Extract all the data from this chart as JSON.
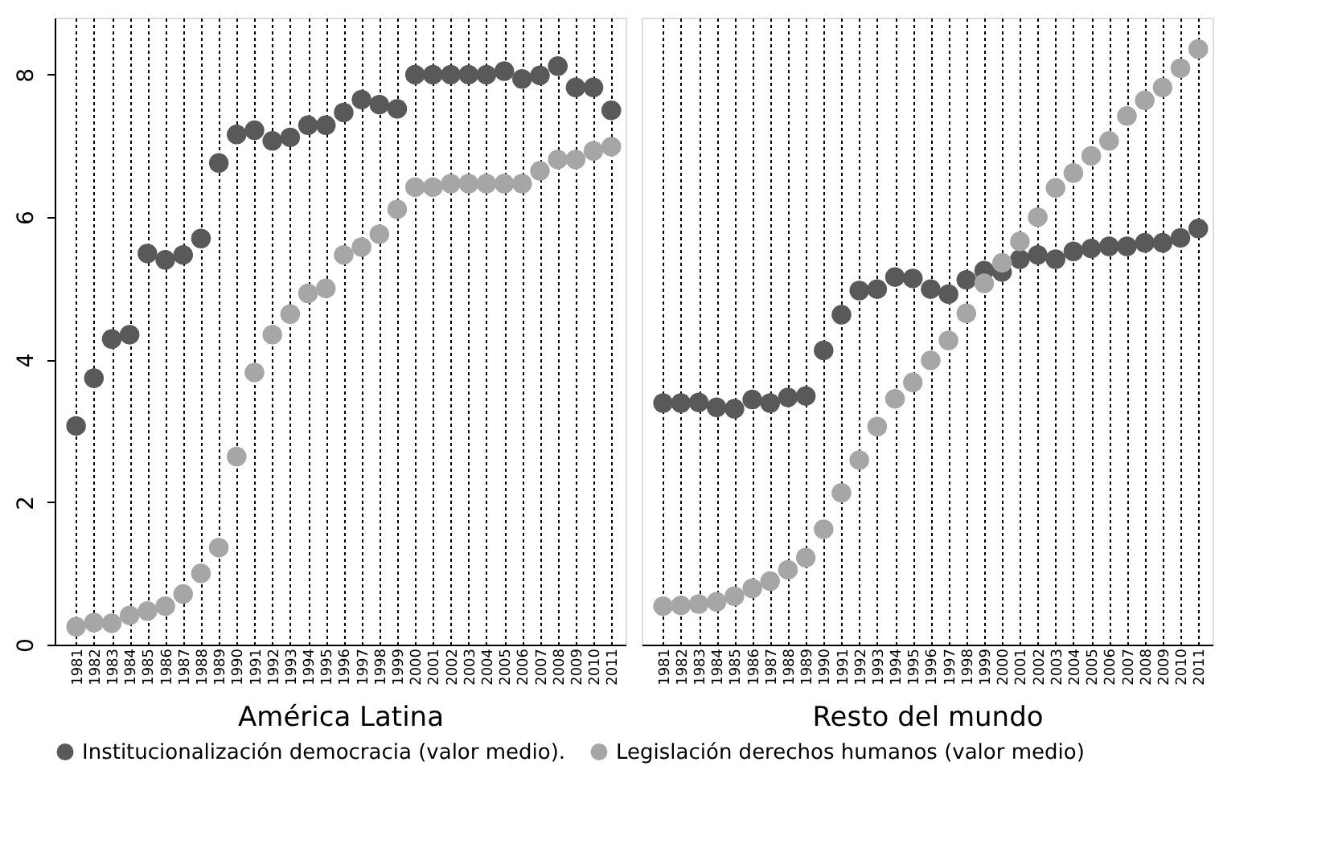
{
  "chart_data": [
    {
      "type": "scatter",
      "xlabel": "América Latina",
      "categories": [
        "1981",
        "1982",
        "1983",
        "1984",
        "1985",
        "1986",
        "1987",
        "1988",
        "1989",
        "1990",
        "1991",
        "1992",
        "1993",
        "1994",
        "1995",
        "1996",
        "1997",
        "1998",
        "1999",
        "2000",
        "2001",
        "2002",
        "2003",
        "2004",
        "2005",
        "2006",
        "2007",
        "2008",
        "2009",
        "2010",
        "2011"
      ],
      "series": [
        {
          "name": "Institucionalización democracia (valor medio).",
          "color": "#595959",
          "values": [
            3.07,
            3.74,
            4.29,
            4.35,
            5.49,
            5.4,
            5.47,
            5.7,
            6.76,
            7.16,
            7.22,
            7.07,
            7.12,
            7.29,
            7.29,
            7.47,
            7.65,
            7.58,
            7.52,
            8.0,
            8.0,
            8.0,
            8.0,
            8.0,
            8.05,
            7.94,
            7.99,
            8.12,
            7.82,
            7.82,
            7.5
          ]
        },
        {
          "name": "Legislación derechos humanos (valor medio)",
          "color": "#a6a6a6",
          "values": [
            0.25,
            0.31,
            0.3,
            0.41,
            0.47,
            0.54,
            0.71,
            1.0,
            1.36,
            2.64,
            3.82,
            4.35,
            4.64,
            4.93,
            5.0,
            5.47,
            5.58,
            5.76,
            6.11,
            6.42,
            6.42,
            6.47,
            6.47,
            6.47,
            6.47,
            6.47,
            6.65,
            6.81,
            6.81,
            6.93,
            6.99
          ]
        }
      ],
      "ylim": [
        0,
        8.8
      ],
      "yticks": [
        0,
        2,
        4,
        6,
        8
      ],
      "grid": "x",
      "marker": "circle",
      "legend": "bottom"
    },
    {
      "type": "scatter",
      "xlabel": "Resto del mundo",
      "categories": [
        "1981",
        "1982",
        "1983",
        "1984",
        "1985",
        "1986",
        "1987",
        "1988",
        "1989",
        "1990",
        "1991",
        "1992",
        "1993",
        "1994",
        "1995",
        "1996",
        "1997",
        "1998",
        "1999",
        "2000",
        "2001",
        "2002",
        "2003",
        "2004",
        "2005",
        "2006",
        "2007",
        "2008",
        "2009",
        "2010",
        "2011"
      ],
      "series": [
        {
          "name": "Institucionalización democracia (valor medio).",
          "color": "#595959",
          "values": [
            3.39,
            3.39,
            3.4,
            3.33,
            3.31,
            3.44,
            3.39,
            3.47,
            3.49,
            4.13,
            4.63,
            4.97,
            4.99,
            5.16,
            5.14,
            4.99,
            4.92,
            5.12,
            5.25,
            5.23,
            5.41,
            5.47,
            5.41,
            5.52,
            5.56,
            5.59,
            5.59,
            5.64,
            5.64,
            5.71,
            5.84
          ]
        },
        {
          "name": "Legislación derechos humanos (valor medio)",
          "color": "#a6a6a6",
          "values": [
            0.54,
            0.55,
            0.57,
            0.6,
            0.68,
            0.79,
            0.89,
            1.05,
            1.22,
            1.62,
            2.13,
            2.59,
            3.06,
            3.45,
            3.68,
            3.99,
            4.27,
            4.65,
            5.07,
            5.36,
            5.66,
            6.0,
            6.41,
            6.62,
            6.86,
            7.07,
            7.42,
            7.64,
            7.82,
            8.09,
            8.36
          ]
        }
      ],
      "ylim": [
        0,
        8.8
      ],
      "grid": "x",
      "marker": "circle",
      "legend": "bottom",
      "tick_labels": "x"
    }
  ]
}
